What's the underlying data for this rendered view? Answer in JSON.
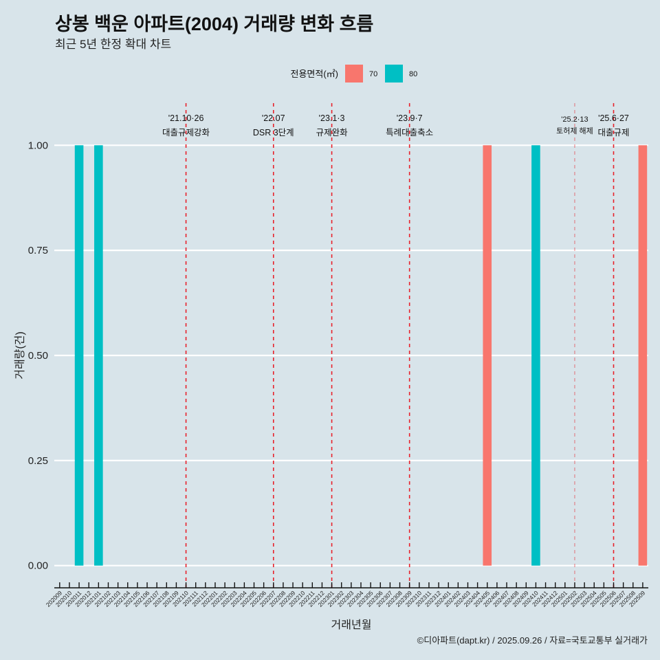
{
  "chart_data": {
    "type": "bar",
    "title": "상봉 백운 아파트(2004) 거래량 변화 흐름",
    "subtitle": "최근 5년 한정 확대 차트",
    "xlabel": "거래년월",
    "ylabel": "거래량(건)",
    "caption": "©디아파트(dapt.kr) / 2025.09.26 / 자료=국토교통부 실거래가",
    "legend_title": "전용면적(㎡)",
    "legend_position": "top",
    "grid": "horizontal-major",
    "ylim": [
      0,
      1
    ],
    "yticks": [
      0,
      0.25,
      0.5,
      0.75,
      1
    ],
    "ytick_labels": [
      "0.00",
      "0.25",
      "0.50",
      "0.75",
      "1.00"
    ],
    "categories": [
      "202009",
      "202010",
      "202011",
      "202012",
      "202101",
      "202102",
      "202103",
      "202104",
      "202105",
      "202106",
      "202107",
      "202108",
      "202109",
      "202110",
      "202111",
      "202112",
      "202201",
      "202202",
      "202203",
      "202204",
      "202205",
      "202206",
      "202207",
      "202208",
      "202209",
      "202210",
      "202211",
      "202212",
      "202301",
      "202302",
      "202303",
      "202304",
      "202305",
      "202306",
      "202307",
      "202308",
      "202309",
      "202310",
      "202311",
      "202312",
      "202401",
      "202402",
      "202403",
      "202404",
      "202405",
      "202406",
      "202407",
      "202408",
      "202409",
      "202410",
      "202411",
      "202412",
      "202501",
      "202502",
      "202503",
      "202504",
      "202505",
      "202506",
      "202507",
      "202508",
      "202509"
    ],
    "series": [
      {
        "name": "70",
        "color": "#F8766D",
        "values": [
          0,
          0,
          0,
          0,
          0,
          0,
          0,
          0,
          0,
          0,
          0,
          0,
          0,
          0,
          0,
          0,
          0,
          0,
          0,
          0,
          0,
          0,
          0,
          0,
          0,
          0,
          0,
          0,
          0,
          0,
          0,
          0,
          0,
          0,
          0,
          0,
          0,
          0,
          0,
          0,
          0,
          0,
          0,
          0,
          1,
          0,
          0,
          0,
          0,
          0,
          0,
          0,
          0,
          0,
          0,
          0,
          0,
          0,
          0,
          0,
          1
        ]
      },
      {
        "name": "80",
        "color": "#00BFC4",
        "values": [
          0,
          0,
          1,
          0,
          1,
          0,
          0,
          0,
          0,
          0,
          0,
          0,
          0,
          0,
          0,
          0,
          0,
          0,
          0,
          0,
          0,
          0,
          0,
          0,
          0,
          0,
          0,
          0,
          0,
          0,
          0,
          0,
          0,
          0,
          0,
          0,
          0,
          0,
          0,
          0,
          0,
          0,
          0,
          0,
          0,
          0,
          0,
          0,
          0,
          1,
          0,
          0,
          0,
          0,
          0,
          0,
          0,
          0,
          0,
          0,
          0
        ]
      }
    ],
    "annotations": [
      {
        "x": "202110",
        "date": "'21.10·26",
        "label": "대출규제강화",
        "style": "major"
      },
      {
        "x": "202207",
        "date": "'22.07",
        "label": "DSR 3단계",
        "style": "major"
      },
      {
        "x": "202301",
        "date": "'23.1·3",
        "label": "규제완화",
        "style": "major"
      },
      {
        "x": "202309",
        "date": "'23.9·7",
        "label": "특례대출축소",
        "style": "major"
      },
      {
        "x": "202502",
        "date": "'25.2·13",
        "label": "토허제 해제",
        "style": "minor"
      },
      {
        "x": "202506",
        "date": "'25.6·27",
        "label": "대출규제",
        "style": "major"
      }
    ]
  },
  "colors": {
    "background": "#d8e4ea",
    "grid": "#ffffff",
    "axis": "#111111",
    "annotation_line": "#e8202a"
  }
}
